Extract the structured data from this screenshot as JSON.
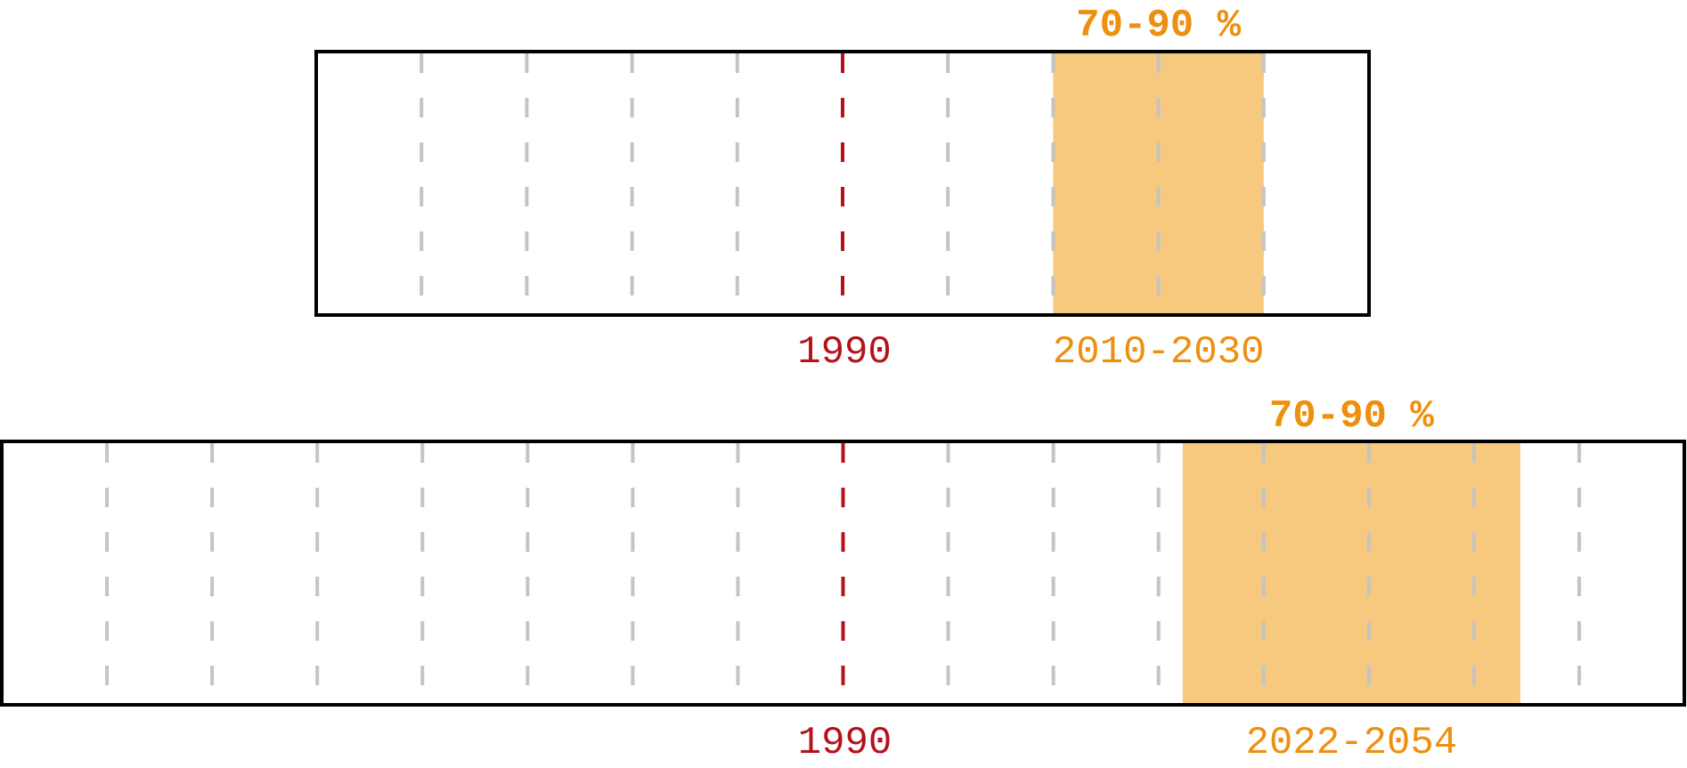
{
  "colors": {
    "frame": "#000000",
    "grid": "#c4c4c4",
    "reference": "#b5121b",
    "band_fill": "#f7c97e",
    "band_text": "#ee8f0e"
  },
  "chart_data": [
    {
      "type": "timeline",
      "grid": "vertical dashed",
      "xlim": [
        1940,
        2040
      ],
      "grid_step": 10,
      "reference": {
        "year": 1990,
        "label": "1990"
      },
      "band": {
        "start": 2010,
        "end": 2030,
        "range_label": "2010-2030",
        "percent_label": "70-90 %"
      }
    },
    {
      "type": "timeline",
      "grid": "vertical dashed",
      "xlim": [
        1910,
        2070
      ],
      "grid_step": 10,
      "reference": {
        "year": 1990,
        "label": "1990"
      },
      "band": {
        "start": 2022.3,
        "end": 2054.4,
        "range_label": "2022-2054",
        "percent_label": "70-90 %"
      }
    }
  ]
}
